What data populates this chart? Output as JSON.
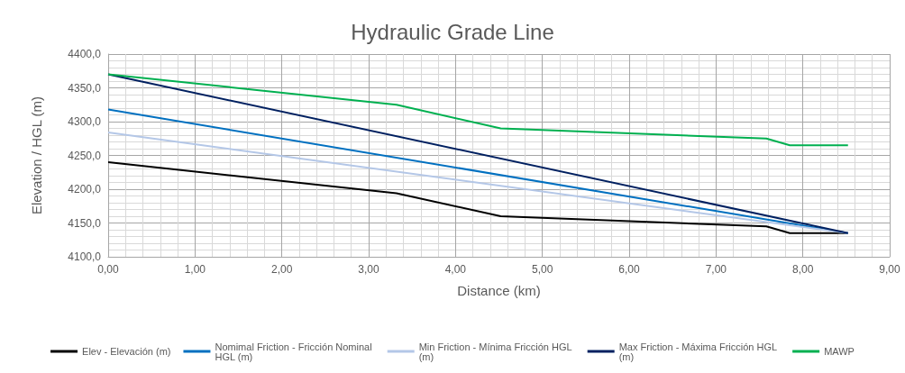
{
  "chart_data": {
    "type": "line",
    "title": "Hydraulic Grade Line",
    "xlabel": "Distance (km)",
    "ylabel": "Elevation / HGL (m)",
    "xlim": [
      0,
      9
    ],
    "xticks": [
      {
        "value": 0,
        "label": "0,00"
      },
      {
        "value": 1,
        "label": "1,00"
      },
      {
        "value": 2,
        "label": "2,00"
      },
      {
        "value": 3,
        "label": "3,00"
      },
      {
        "value": 4,
        "label": "4,00"
      },
      {
        "value": 5,
        "label": "5,00"
      },
      {
        "value": 6,
        "label": "6,00"
      },
      {
        "value": 7,
        "label": "7,00"
      },
      {
        "value": 8,
        "label": "8,00"
      },
      {
        "value": 9,
        "label": "9,00"
      }
    ],
    "ylim": [
      4100,
      4400
    ],
    "yticks": [
      {
        "value": 4100,
        "label": "4100,0"
      },
      {
        "value": 4150,
        "label": "4150,0"
      },
      {
        "value": 4200,
        "label": "4200,0"
      },
      {
        "value": 4250,
        "label": "4250,0"
      },
      {
        "value": 4300,
        "label": "4300,0"
      },
      {
        "value": 4350,
        "label": "4350,0"
      },
      {
        "value": 4400,
        "label": "4400,0"
      }
    ],
    "grid": true,
    "legend": "bottom",
    "marker": "none",
    "line_style": "solid",
    "series": [
      {
        "name": "Elev - Elevación (m)",
        "color": "#000000",
        "x": [
          0,
          3.32,
          4.52,
          7.58,
          7.85,
          8.52
        ],
        "values": [
          4240,
          4194,
          4160,
          4145,
          4135,
          4135
        ]
      },
      {
        "name": "Nomimal Friction - Fricción Nominal HGL (m)",
        "color": "#0070c0",
        "x": [
          0,
          8.52
        ],
        "values": [
          4318,
          4135
        ]
      },
      {
        "name": "Min Friction - Mínima Fricción HGL (m)",
        "color": "#b4c7e7",
        "x": [
          0,
          8.52
        ],
        "values": [
          4284,
          4135
        ]
      },
      {
        "name": "Max Friction - Máxima Fricción HGL (m)",
        "color": "#002060",
        "x": [
          0,
          8.52
        ],
        "values": [
          4370,
          4135
        ]
      },
      {
        "name": "MAWP",
        "color": "#00b050",
        "x": [
          0,
          3.32,
          4.52,
          7.58,
          7.85,
          8.52
        ],
        "values": [
          4370,
          4325,
          4290,
          4275,
          4265,
          4265
        ]
      }
    ]
  }
}
